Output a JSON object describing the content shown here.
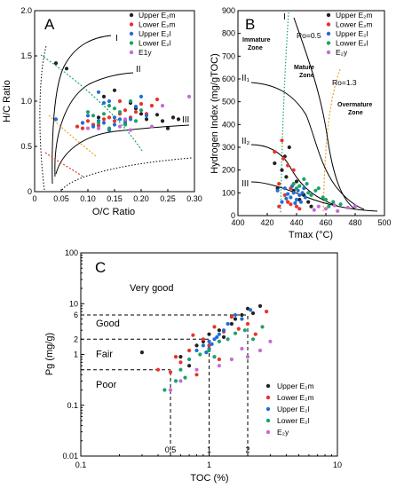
{
  "chart_data": [
    {
      "type": "scatter",
      "panel_label": "A",
      "xlabel": "O/C Ratio",
      "ylabel": "H/C Ratio",
      "xlim": [
        0,
        0.3
      ],
      "ylim": [
        0,
        2.0
      ],
      "xticks": [
        "0",
        "0.05",
        "0.10",
        "0.15",
        "0.20",
        "0.25",
        "0.30"
      ],
      "yticks": [
        "0",
        "0.5",
        "1.0",
        "1.5",
        "2.0"
      ],
      "kerogen_types": [
        "I",
        "II",
        "III"
      ],
      "legend": [
        "Upper E₂m",
        "Lower E₂m",
        "Upper E₂l",
        "Lower E₂l",
        "E1y"
      ],
      "series": [
        {
          "name": "Upper E₂m",
          "color": "#222222",
          "points": [
            [
              0.04,
              1.42
            ],
            [
              0.06,
              1.36
            ],
            [
              0.13,
              1.05
            ],
            [
              0.15,
              1.12
            ],
            [
              0.18,
              0.98
            ],
            [
              0.2,
              0.86
            ],
            [
              0.21,
              0.8
            ],
            [
              0.23,
              0.85
            ],
            [
              0.24,
              0.78
            ],
            [
              0.26,
              0.82
            ],
            [
              0.27,
              0.8
            ],
            [
              0.12,
              0.82
            ],
            [
              0.17,
              0.75
            ],
            [
              0.19,
              0.92
            ],
            [
              0.25,
              0.7
            ]
          ]
        },
        {
          "name": "Lower E₂m",
          "color": "#e8332a",
          "points": [
            [
              0.08,
              0.72
            ],
            [
              0.09,
              0.7
            ],
            [
              0.1,
              0.78
            ],
            [
              0.11,
              0.74
            ],
            [
              0.12,
              0.73
            ],
            [
              0.13,
              0.8
            ],
            [
              0.14,
              0.82
            ],
            [
              0.15,
              0.78
            ],
            [
              0.16,
              0.86
            ],
            [
              0.17,
              0.9
            ],
            [
              0.18,
              0.82
            ],
            [
              0.19,
              0.88
            ],
            [
              0.2,
              0.97
            ],
            [
              0.21,
              0.86
            ],
            [
              0.22,
              0.95
            ],
            [
              0.23,
              1.02
            ],
            [
              0.09,
              0.76
            ],
            [
              0.16,
              1.0
            ]
          ]
        },
        {
          "name": "Upper E₂l",
          "color": "#1f6fd6",
          "points": [
            [
              0.04,
              0.8
            ],
            [
              0.09,
              0.76
            ],
            [
              0.1,
              0.84
            ],
            [
              0.12,
              0.78
            ],
            [
              0.12,
              1.1
            ],
            [
              0.13,
              0.76
            ],
            [
              0.14,
              0.68
            ],
            [
              0.15,
              0.74
            ],
            [
              0.15,
              0.82
            ],
            [
              0.16,
              0.8
            ],
            [
              0.17,
              0.78
            ],
            [
              0.18,
              0.8
            ],
            [
              0.19,
              0.94
            ],
            [
              0.14,
              1.0
            ],
            [
              0.13,
              0.98
            ],
            [
              0.11,
              0.72
            ],
            [
              0.2,
              1.05
            ],
            [
              0.21,
              0.84
            ]
          ]
        },
        {
          "name": "Lower E₂l",
          "color": "#1aa36a",
          "points": [
            [
              0.1,
              0.88
            ],
            [
              0.11,
              0.84
            ],
            [
              0.12,
              0.76
            ],
            [
              0.13,
              0.86
            ],
            [
              0.14,
              0.95
            ],
            [
              0.15,
              0.92
            ],
            [
              0.16,
              0.88
            ],
            [
              0.17,
              0.74
            ],
            [
              0.18,
              1.0
            ],
            [
              0.19,
              0.78
            ],
            [
              0.2,
              0.9
            ],
            [
              0.14,
              0.7
            ]
          ]
        },
        {
          "name": "E1y",
          "color": "#c46bd6",
          "points": [
            [
              0.1,
              0.7
            ],
            [
              0.12,
              0.7
            ],
            [
              0.16,
              0.72
            ],
            [
              0.17,
              0.8
            ],
            [
              0.29,
              1.05
            ],
            [
              0.24,
              0.95
            ],
            [
              0.22,
              0.72
            ],
            [
              0.18,
              0.68
            ]
          ]
        }
      ]
    },
    {
      "type": "scatter",
      "panel_label": "B",
      "xlabel": "Tmax (°C)",
      "ylabel": "Hydrogen Index (mg/gTOC)",
      "xlim": [
        400,
        500
      ],
      "ylim": [
        0,
        900
      ],
      "xticks": [
        "400",
        "420",
        "440",
        "460",
        "480",
        "500"
      ],
      "yticks": [
        "0",
        "100",
        "200",
        "300",
        "400",
        "500",
        "600",
        "700",
        "800",
        "900"
      ],
      "kerogen_types": [
        "I",
        "II₁",
        "II₂",
        "III"
      ],
      "zones": [
        "Immature Zone",
        "Mature Zone",
        "Overmature Zone"
      ],
      "maturity_lines": [
        "Ro=0.5",
        "Ro=1.3"
      ],
      "legend": [
        "Upper E₂m",
        "Lower E₂m",
        "Upper E₂l",
        "Lower E₂l",
        "E₂y"
      ],
      "series": [
        {
          "name": "Upper E₂m",
          "color": "#222222",
          "points": [
            [
              425,
              230
            ],
            [
              427,
              120
            ],
            [
              430,
              200
            ],
            [
              432,
              260
            ],
            [
              435,
              300
            ],
            [
              440,
              150
            ],
            [
              445,
              90
            ],
            [
              448,
              60
            ],
            [
              450,
              40
            ],
            [
              433,
              170
            ],
            [
              438,
              110
            ],
            [
              442,
              70
            ]
          ]
        },
        {
          "name": "Lower E₂m",
          "color": "#e8332a",
          "points": [
            [
              425,
              280
            ],
            [
              428,
              140
            ],
            [
              430,
              330
            ],
            [
              432,
              90
            ],
            [
              434,
              60
            ],
            [
              436,
              50
            ],
            [
              438,
              200
            ],
            [
              440,
              40
            ],
            [
              428,
              40
            ],
            [
              431,
              250
            ],
            [
              436,
              120
            ],
            [
              442,
              30
            ],
            [
              434,
              220
            ]
          ]
        },
        {
          "name": "Upper E₂l",
          "color": "#1f6fd6",
          "points": [
            [
              427,
              110
            ],
            [
              430,
              60
            ],
            [
              432,
              120
            ],
            [
              434,
              95
            ],
            [
              436,
              80
            ],
            [
              438,
              100
            ],
            [
              440,
              70
            ],
            [
              441,
              110
            ],
            [
              442,
              90
            ],
            [
              443,
              60
            ],
            [
              444,
              100
            ],
            [
              446,
              80
            ],
            [
              437,
              130
            ],
            [
              439,
              55
            ],
            [
              433,
              75
            ],
            [
              445,
              120
            ]
          ]
        },
        {
          "name": "Lower E₂l",
          "color": "#1aa36a",
          "points": [
            [
              438,
              140
            ],
            [
              440,
              120
            ],
            [
              442,
              130
            ],
            [
              445,
              160
            ],
            [
              448,
              100
            ],
            [
              450,
              90
            ],
            [
              453,
              110
            ],
            [
              455,
              120
            ],
            [
              458,
              80
            ],
            [
              460,
              70
            ],
            [
              462,
              40
            ],
            [
              465,
              60
            ],
            [
              470,
              50
            ],
            [
              447,
              140
            ]
          ]
        },
        {
          "name": "E₂y",
          "color": "#c46bd6",
          "points": [
            [
              455,
              40
            ],
            [
              460,
              30
            ],
            [
              468,
              20
            ],
            [
              475,
              35
            ],
            [
              480,
              40
            ],
            [
              452,
              25
            ],
            [
              466,
              45
            ]
          ]
        }
      ]
    },
    {
      "type": "scatter",
      "panel_label": "C",
      "xlabel": "TOC (%)",
      "ylabel": "Pg (mg/g)",
      "xscale": "log",
      "yscale": "log",
      "xlim": [
        0.1,
        10
      ],
      "ylim": [
        0.01,
        100
      ],
      "xticks": [
        0.1,
        1,
        10
      ],
      "yticks": [
        0.01,
        0.1,
        1,
        10,
        100
      ],
      "ref_x": [
        0.5,
        1,
        2
      ],
      "ref_y": [
        0.5,
        2,
        6
      ],
      "ref_x_labels": [
        "0.5",
        "1",
        "2"
      ],
      "ref_y_labels": [
        "6",
        "2"
      ],
      "grade_labels": [
        "Very good",
        "Good",
        "Fair",
        "Poor"
      ],
      "legend": [
        "Upper E₂m",
        "Lower E₂m",
        "Upper E₂l",
        "Lower E₂l",
        "E₂y"
      ],
      "series": [
        {
          "name": "Upper E₂m",
          "color": "#222222",
          "points": [
            [
              0.3,
              1.1
            ],
            [
              0.6,
              0.9
            ],
            [
              0.8,
              1.5
            ],
            [
              1.0,
              2.5
            ],
            [
              1.2,
              3.0
            ],
            [
              1.5,
              4.0
            ],
            [
              1.8,
              6.0
            ],
            [
              2.0,
              8.0
            ],
            [
              2.5,
              9.0
            ],
            [
              2.2,
              6.5
            ],
            [
              1.3,
              2.2
            ],
            [
              0.9,
              1.8
            ],
            [
              0.7,
              0.6
            ],
            [
              1.6,
              5.0
            ]
          ]
        },
        {
          "name": "Lower E₂m",
          "color": "#e8332a",
          "points": [
            [
              0.4,
              0.5
            ],
            [
              0.5,
              0.45
            ],
            [
              0.6,
              0.7
            ],
            [
              0.7,
              1.2
            ],
            [
              0.8,
              0.4
            ],
            [
              0.9,
              2.0
            ],
            [
              1.0,
              1.5
            ],
            [
              1.1,
              3.5
            ],
            [
              1.3,
              2.8
            ],
            [
              1.5,
              5.5
            ],
            [
              1.7,
              3.2
            ],
            [
              2.0,
              4.0
            ],
            [
              2.3,
              2.5
            ],
            [
              2.8,
              7.0
            ],
            [
              0.55,
              0.9
            ],
            [
              1.2,
              0.8
            ],
            [
              0.75,
              2.4
            ]
          ]
        },
        {
          "name": "Upper E₂l",
          "color": "#1f6fd6",
          "points": [
            [
              0.8,
              1.2
            ],
            [
              0.9,
              1.5
            ],
            [
              1.0,
              1.3
            ],
            [
              1.0,
              1.8
            ],
            [
              1.1,
              2.0
            ],
            [
              1.2,
              2.5
            ],
            [
              1.3,
              3.0
            ],
            [
              1.4,
              4.0
            ],
            [
              1.6,
              6.0
            ],
            [
              1.8,
              5.0
            ],
            [
              0.95,
              1.1
            ],
            [
              1.05,
              1.6
            ],
            [
              1.15,
              2.2
            ],
            [
              2.1,
              7.5
            ]
          ]
        },
        {
          "name": "Lower E₂l",
          "color": "#1aa36a",
          "points": [
            [
              0.45,
              0.2
            ],
            [
              0.55,
              0.3
            ],
            [
              0.6,
              0.5
            ],
            [
              0.7,
              0.8
            ],
            [
              0.85,
              1.0
            ],
            [
              1.0,
              1.2
            ],
            [
              1.2,
              1.8
            ],
            [
              1.4,
              2.0
            ],
            [
              1.6,
              2.6
            ],
            [
              1.9,
              3.0
            ],
            [
              2.2,
              2.0
            ],
            [
              2.6,
              3.5
            ],
            [
              0.65,
              0.35
            ],
            [
              1.1,
              0.9
            ]
          ]
        },
        {
          "name": "E₂y",
          "color": "#c46bd6",
          "points": [
            [
              0.5,
              0.2
            ],
            [
              0.6,
              0.3
            ],
            [
              0.8,
              0.5
            ],
            [
              1.5,
              0.8
            ],
            [
              2.0,
              0.9
            ],
            [
              2.5,
              1.2
            ],
            [
              3.0,
              1.8
            ],
            [
              1.8,
              1.3
            ],
            [
              1.2,
              0.6
            ]
          ]
        }
      ]
    }
  ]
}
